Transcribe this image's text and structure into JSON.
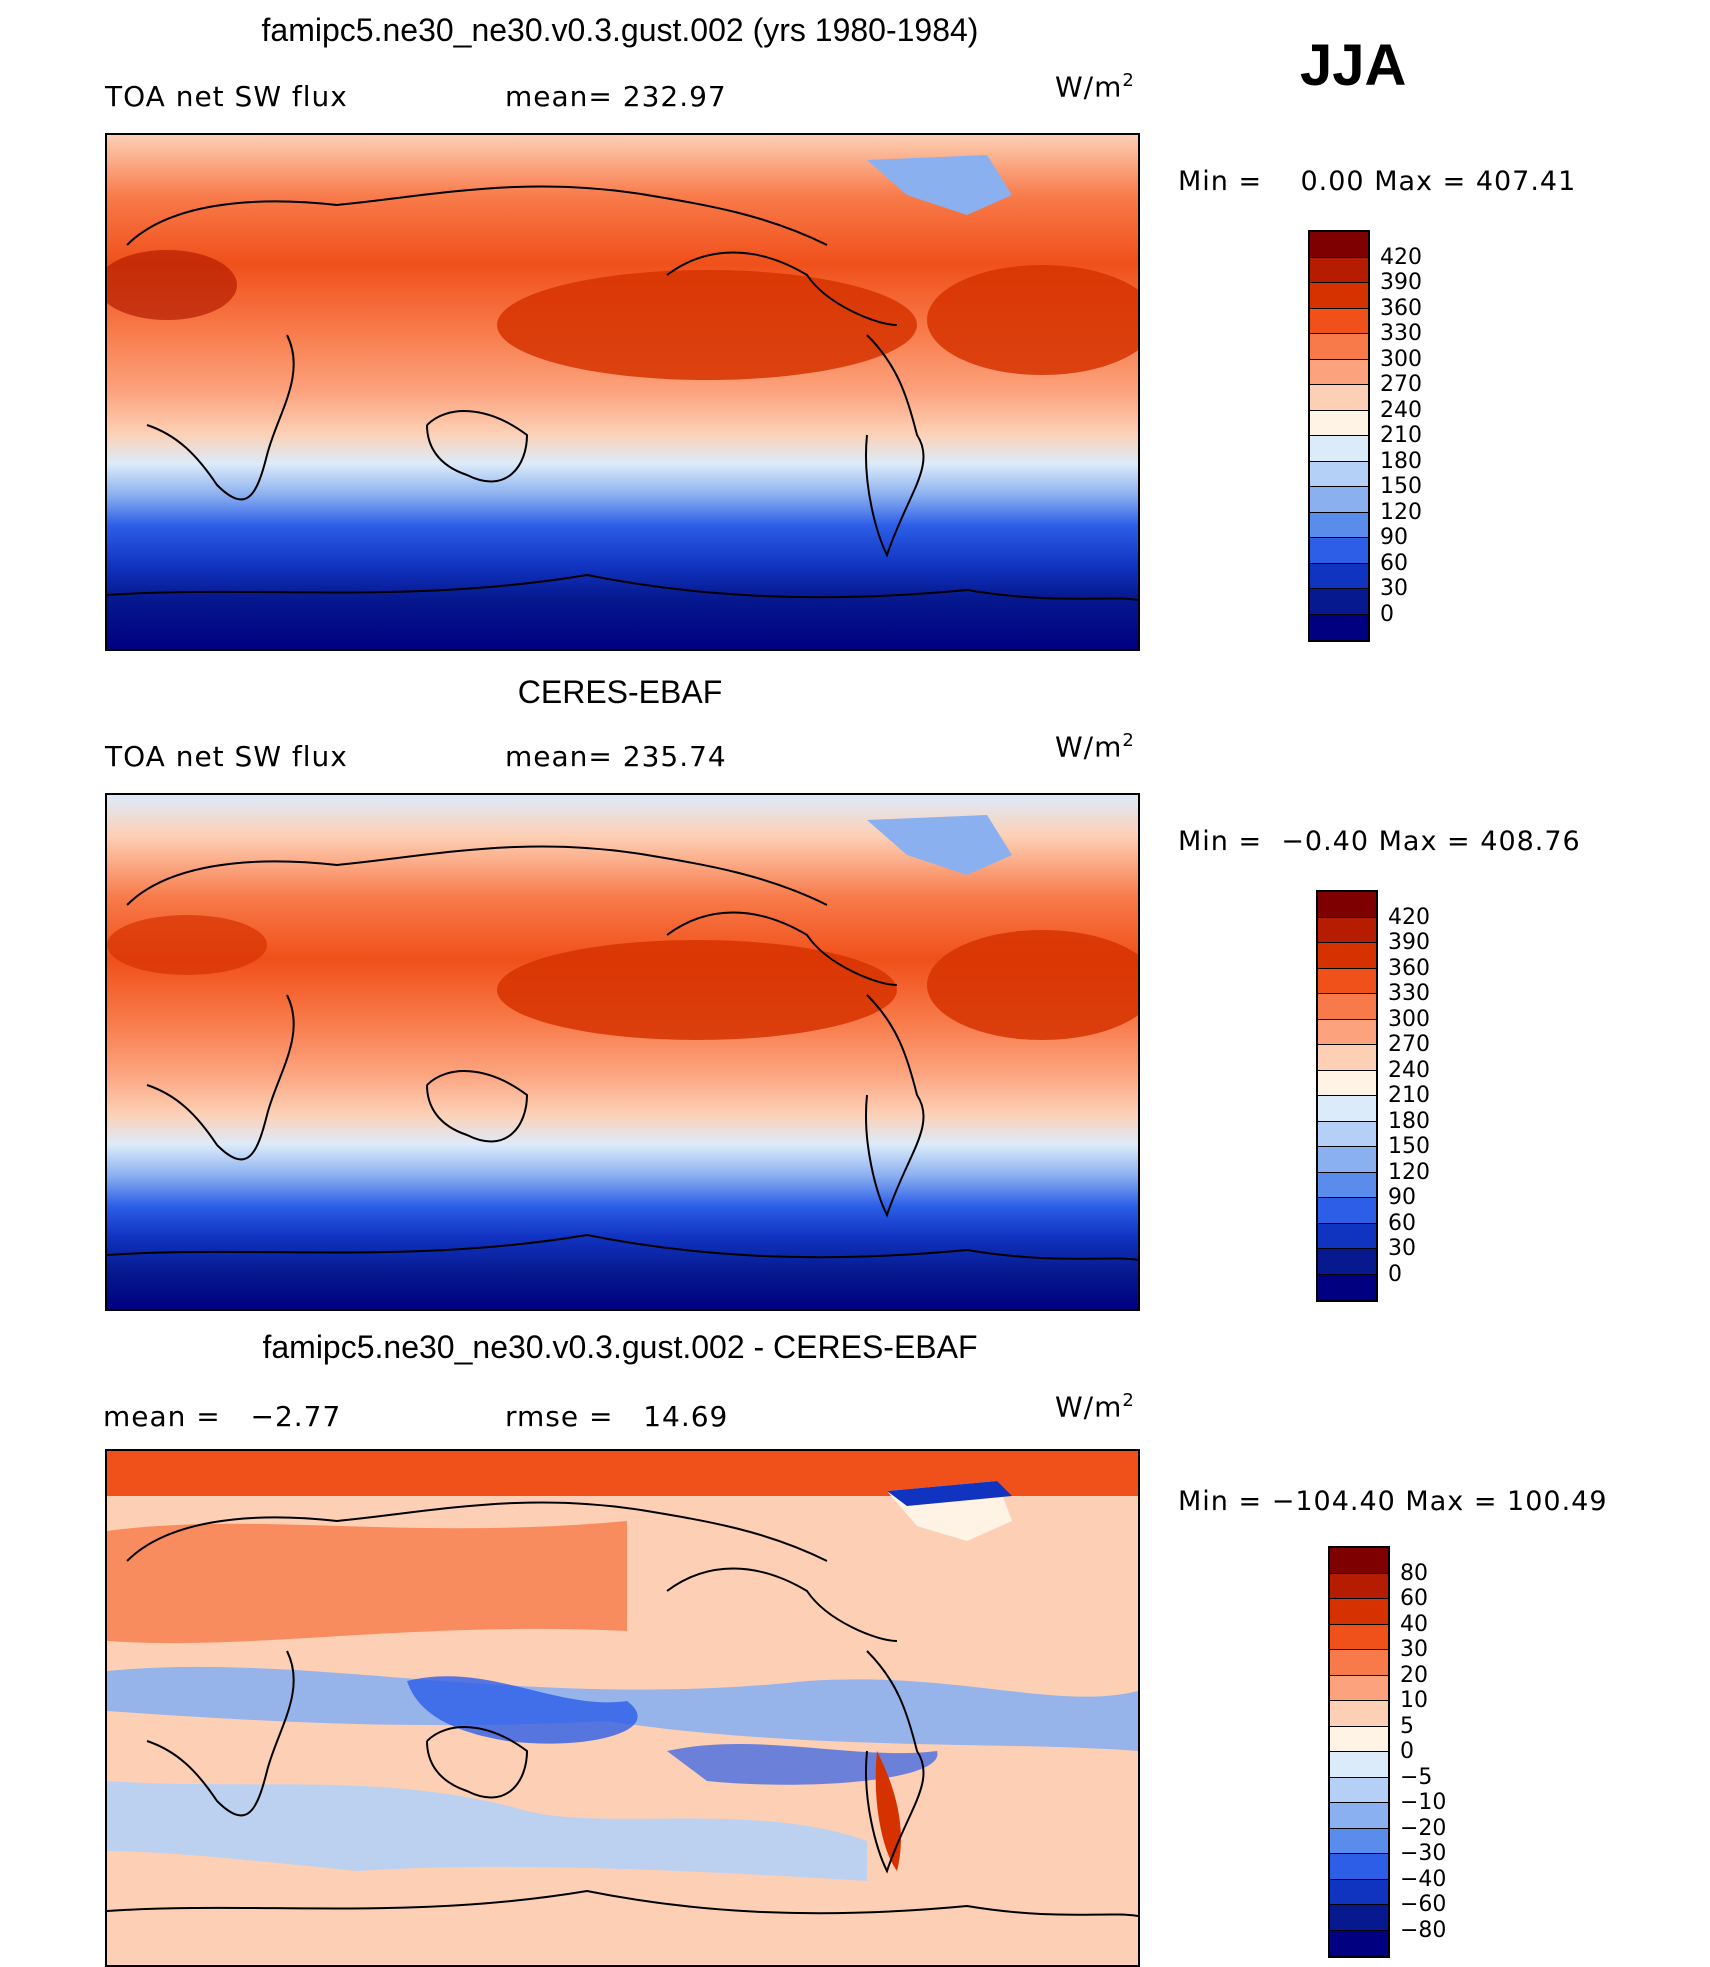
{
  "season": "JJA",
  "units_label": "W/m",
  "units_exp": "2",
  "panels": [
    {
      "title": "famipc5.ne30_ne30.v0.3.gust.002 (yrs 1980-1984)",
      "left_label": "TOA net SW flux",
      "mid_label": "mean= 232.97",
      "min_label": "Min =",
      "min_value": "0.00",
      "max_label": "Max =",
      "max_value": "407.41",
      "colorbar": {
        "labels": [
          "420",
          "390",
          "360",
          "330",
          "300",
          "270",
          "240",
          "210",
          "180",
          "150",
          "120",
          "90",
          "60",
          "30",
          "0"
        ],
        "colors": [
          "#7f0000",
          "#b51c00",
          "#d63200",
          "#f0501a",
          "#f87a4a",
          "#fca37e",
          "#fdd0b5",
          "#fff3e6",
          "#dcebfa",
          "#b5d0f6",
          "#8bb0f0",
          "#5a8cec",
          "#2c5ee8",
          "#1033c0",
          "#06198f",
          "#000080"
        ]
      }
    },
    {
      "title": "CERES-EBAF",
      "left_label": "TOA net SW flux",
      "mid_label": "mean= 235.74",
      "min_label": "Min =",
      "min_value": "−0.40",
      "max_label": "Max =",
      "max_value": "408.76",
      "colorbar": {
        "labels": [
          "420",
          "390",
          "360",
          "330",
          "300",
          "270",
          "240",
          "210",
          "180",
          "150",
          "120",
          "90",
          "60",
          "30",
          "0"
        ],
        "colors": [
          "#7f0000",
          "#b51c00",
          "#d63200",
          "#f0501a",
          "#f87a4a",
          "#fca37e",
          "#fdd0b5",
          "#fff3e6",
          "#dcebfa",
          "#b5d0f6",
          "#8bb0f0",
          "#5a8cec",
          "#2c5ee8",
          "#1033c0",
          "#06198f",
          "#000080"
        ]
      }
    },
    {
      "title": "famipc5.ne30_ne30.v0.3.gust.002 - CERES-EBAF",
      "left_label": "mean =",
      "left_value": "−2.77",
      "mid_label": "rmse =",
      "mid_value": "14.69",
      "min_label": "Min =",
      "min_value": "−104.40",
      "max_label": "Max =",
      "max_value": "100.49",
      "colorbar": {
        "labels": [
          "80",
          "60",
          "40",
          "30",
          "20",
          "10",
          "5",
          "0",
          "−5",
          "−10",
          "−20",
          "−30",
          "−40",
          "−60",
          "−80"
        ],
        "colors": [
          "#7f0000",
          "#b51c00",
          "#d63200",
          "#f0501a",
          "#f87a4a",
          "#fca37e",
          "#fdd0b5",
          "#fff3e6",
          "#dcebfa",
          "#b5d0f6",
          "#8bb0f0",
          "#5a8cec",
          "#2c5ee8",
          "#1033c0",
          "#06198f",
          "#000080"
        ]
      }
    }
  ]
}
